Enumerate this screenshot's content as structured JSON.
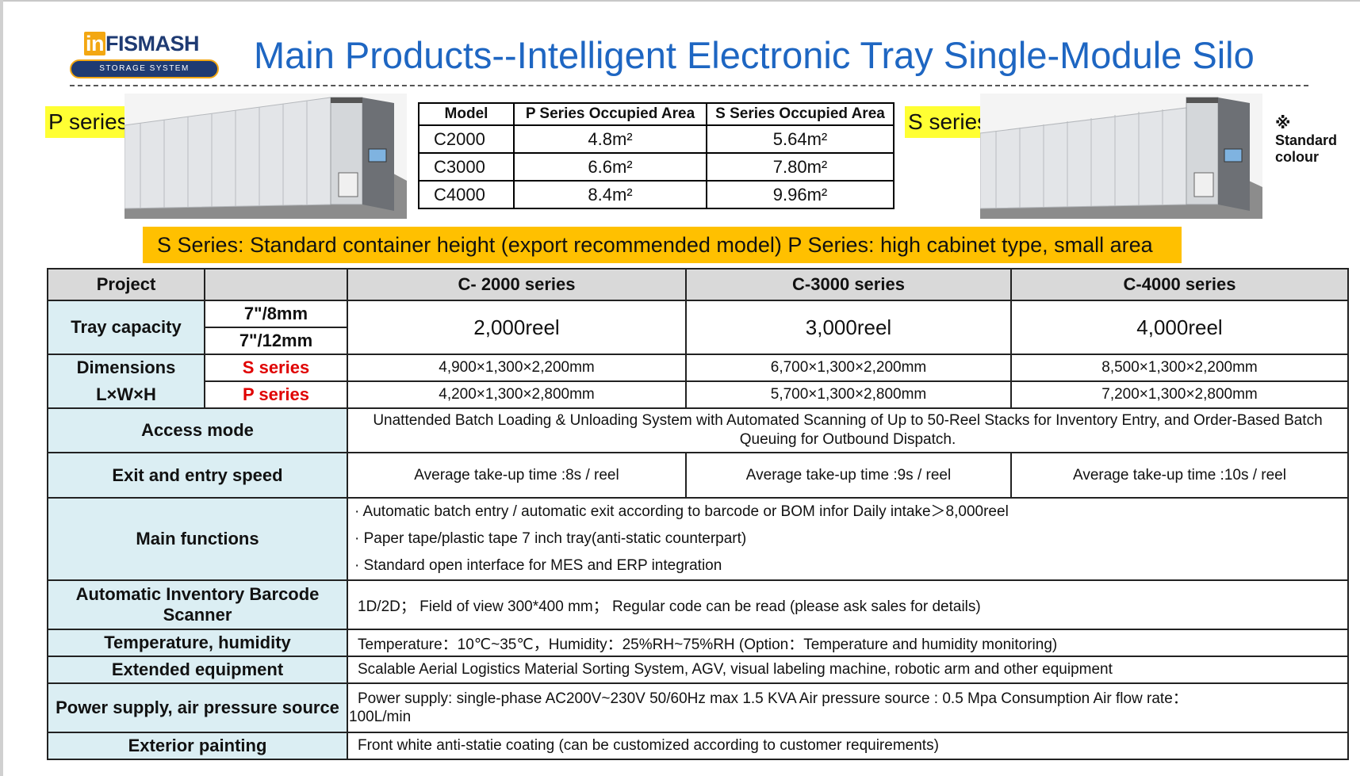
{
  "header": {
    "logo_text_in": "in",
    "logo_text_brand": "FISMASH",
    "logo_tagline": "STORAGE SYSTEM",
    "title": "Main Products--Intelligent Electronic Tray Single-Module Silo"
  },
  "labels": {
    "p_series": "P series",
    "s_series": "S series",
    "std_mark": "※",
    "std_line1": "Standard",
    "std_line2": "colour"
  },
  "area_table": {
    "headers": [
      "Model",
      "P Series Occupied Area",
      "S Series Occupied Area"
    ],
    "rows": [
      [
        "C2000",
        "4.8m²",
        "5.64m²"
      ],
      [
        "C3000",
        "6.6m²",
        "7.80m²"
      ],
      [
        "C4000",
        "8.4m²",
        "9.96m²"
      ]
    ]
  },
  "banner": "S Series: Standard container height (export recommended model) P Series: high cabinet type, small area",
  "spec": {
    "headers": [
      "Project",
      "",
      "C- 2000 series",
      "C-3000 series",
      "C-4000 series"
    ],
    "tray": {
      "label": "Tray capacity",
      "sub1": "7\"/8mm",
      "sub2": "7\"/12mm",
      "values": [
        "2,000reel",
        "3,000reel",
        "4,000reel"
      ]
    },
    "dimensions": {
      "label1": "Dimensions",
      "label2": "L×W×H",
      "s_label": "S  series",
      "p_label": "P  series",
      "s_values": [
        "4,900×1,300×2,200mm",
        "6,700×1,300×2,200mm",
        "8,500×1,300×2,200mm"
      ],
      "p_values": [
        "4,200×1,300×2,800mm",
        "5,700×1,300×2,800mm",
        "7,200×1,300×2,800mm"
      ]
    },
    "access": {
      "label": "Access mode",
      "value": "Unattended Batch Loading & Unloading System with Automated Scanning of Up to 50-Reel Stacks for Inventory Entry, and Order-Based Batch Queuing for Outbound Dispatch."
    },
    "speed": {
      "label": "Exit and entry speed",
      "values": [
        "Average take-up time :8s / reel",
        "Average take-up time :9s / reel",
        "Average take-up time :10s / reel"
      ]
    },
    "functions": {
      "label": "Main functions",
      "items": [
        "· Automatic batch entry / automatic exit according to barcode or BOM infor   Daily intake＞8,000reel",
        "· Paper tape/plastic tape 7 inch tray(anti-static counterpart)",
        "· Standard open interface for MES and ERP integration"
      ]
    },
    "scanner": {
      "label": "Automatic Inventory Barcode Scanner",
      "value": "1D/2D； Field of view 300*400 mm； Regular code can be read (please ask sales for details)"
    },
    "temperature": {
      "label": "Temperature, humidity",
      "value": "Temperature：10℃~35℃，Humidity：25%RH~75%RH (Option：Temperature and humidity monitoring)"
    },
    "extended": {
      "label": "Extended equipment",
      "value": "Scalable Aerial Logistics Material Sorting System, AGV, visual labeling machine, robotic arm and other equipment"
    },
    "power": {
      "label": "Power supply, air pressure source",
      "value_line1": "Power supply: single-phase AC200V~230V  50/60Hz  max 1.5 KVA   Air pressure source : 0.5 Mpa  Consumption Air flow rate：",
      "value_line2": "100L/min"
    },
    "painting": {
      "label": "Exterior painting",
      "value": "Front white anti-statie coating (can be customized according to customer requirements)"
    }
  }
}
